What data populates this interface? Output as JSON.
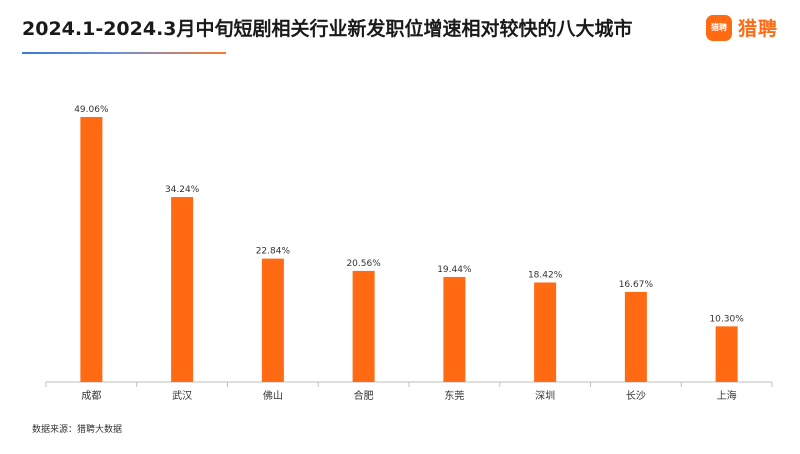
{
  "header": {
    "title": "2024.1-2024.3月中旬短剧相关行业新发职位增速相对较快的八大城市",
    "logo_text": "猎聘",
    "logo_mark_text": "猎聘"
  },
  "footer": {
    "source": "数据来源：猎聘大数据"
  },
  "colors": {
    "bar": "#ff6a13",
    "axis": "#bfbfbf",
    "brand": "#ff6a13"
  },
  "chart_data": {
    "type": "bar",
    "title": "2024.1-2024.3月中旬短剧相关行业新发职位增速相对较快的八大城市",
    "xlabel": "",
    "ylabel": "",
    "categories": [
      "成都",
      "武汉",
      "佛山",
      "合肥",
      "东莞",
      "深圳",
      "长沙",
      "上海"
    ],
    "values": [
      49.06,
      34.24,
      22.84,
      20.56,
      19.44,
      18.42,
      16.67,
      10.3
    ],
    "value_labels": [
      "49.06%",
      "34.24%",
      "22.84%",
      "20.56%",
      "19.44%",
      "18.42%",
      "16.67%",
      "10.30%"
    ],
    "ylim": [
      0,
      52.2
    ],
    "grid": false,
    "legend": "none"
  }
}
